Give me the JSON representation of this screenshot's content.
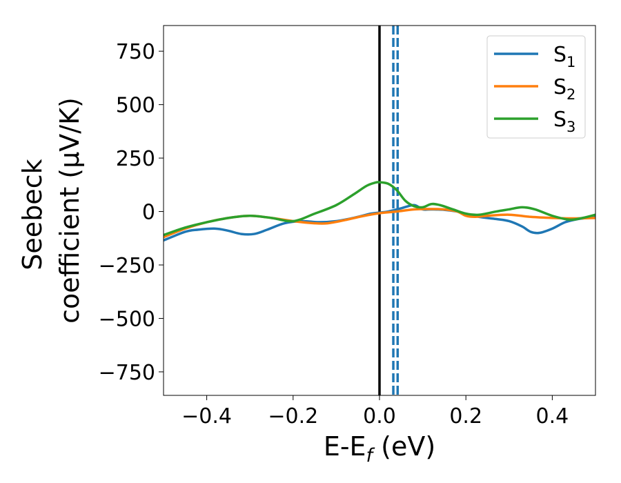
{
  "chart_data": {
    "type": "line",
    "xlabel": "E-E",
    "xlabel_sub": "f",
    "xlabel_unit": " (eV)",
    "ylabel_line1": "Seebeck",
    "ylabel_line2": "coefficient  (μV/K)",
    "xlim": [
      -0.5,
      0.5
    ],
    "ylim": [
      -860,
      870
    ],
    "xticks": [
      -0.4,
      -0.2,
      0.0,
      0.2,
      0.4
    ],
    "xtick_labels": [
      "−0.4",
      "−0.2",
      "0.0",
      "0.2",
      "0.4"
    ],
    "yticks": [
      750,
      500,
      250,
      0,
      -250,
      -500,
      -750
    ],
    "ytick_labels": [
      "750",
      "500",
      "250",
      "0",
      "−250",
      "−500",
      "−750"
    ],
    "grid": false,
    "legend_position": "top-right",
    "vlines": [
      {
        "x": 0.0,
        "style": "solid",
        "color": "#000000"
      },
      {
        "x": 0.032,
        "style": "dashed",
        "color": "#1f77b4"
      },
      {
        "x": 0.042,
        "style": "dashed",
        "color": "#1f77b4"
      }
    ],
    "series": [
      {
        "name": "S",
        "sub": "1",
        "color": "#1f77b4",
        "x": [
          -0.5,
          -0.45,
          -0.42,
          -0.38,
          -0.35,
          -0.32,
          -0.29,
          -0.26,
          -0.22,
          -0.18,
          -0.14,
          -0.1,
          -0.06,
          -0.02,
          0.0,
          0.02,
          0.05,
          0.08,
          0.1,
          0.12,
          0.15,
          0.18,
          0.2,
          0.23,
          0.27,
          0.3,
          0.33,
          0.35,
          0.37,
          0.4,
          0.43,
          0.46,
          0.48,
          0.5
        ],
        "y": [
          -135,
          -95,
          -85,
          -80,
          -90,
          -105,
          -105,
          -85,
          -55,
          -45,
          -50,
          -45,
          -30,
          -10,
          -5,
          0,
          15,
          30,
          10,
          10,
          8,
          0,
          -10,
          -25,
          -35,
          -45,
          -70,
          -95,
          -100,
          -80,
          -50,
          -35,
          -30,
          -20
        ]
      },
      {
        "name": "S",
        "sub": "2",
        "color": "#ff7f0e",
        "x": [
          -0.5,
          -0.45,
          -0.4,
          -0.35,
          -0.3,
          -0.25,
          -0.2,
          -0.15,
          -0.12,
          -0.08,
          -0.04,
          0.0,
          0.04,
          0.08,
          0.12,
          0.15,
          0.18,
          0.2,
          0.22,
          0.25,
          0.3,
          0.35,
          0.4,
          0.45,
          0.5
        ],
        "y": [
          -120,
          -80,
          -50,
          -30,
          -20,
          -30,
          -45,
          -55,
          -55,
          -40,
          -22,
          -8,
          0,
          10,
          12,
          10,
          0,
          -20,
          -25,
          -20,
          -15,
          -25,
          -30,
          -32,
          -30
        ]
      },
      {
        "name": "S",
        "sub": "3",
        "color": "#2ca02c",
        "x": [
          -0.5,
          -0.45,
          -0.4,
          -0.35,
          -0.3,
          -0.25,
          -0.2,
          -0.15,
          -0.1,
          -0.06,
          -0.03,
          -0.01,
          0.0,
          0.02,
          0.04,
          0.06,
          0.08,
          0.1,
          0.12,
          0.14,
          0.17,
          0.2,
          0.23,
          0.27,
          0.3,
          0.33,
          0.36,
          0.4,
          0.44,
          0.47,
          0.5
        ],
        "y": [
          -110,
          -75,
          -50,
          -30,
          -20,
          -30,
          -45,
          -10,
          30,
          80,
          120,
          135,
          137,
          130,
          100,
          50,
          25,
          20,
          35,
          30,
          10,
          -10,
          -15,
          0,
          10,
          20,
          10,
          -20,
          -38,
          -30,
          -15
        ]
      }
    ]
  }
}
